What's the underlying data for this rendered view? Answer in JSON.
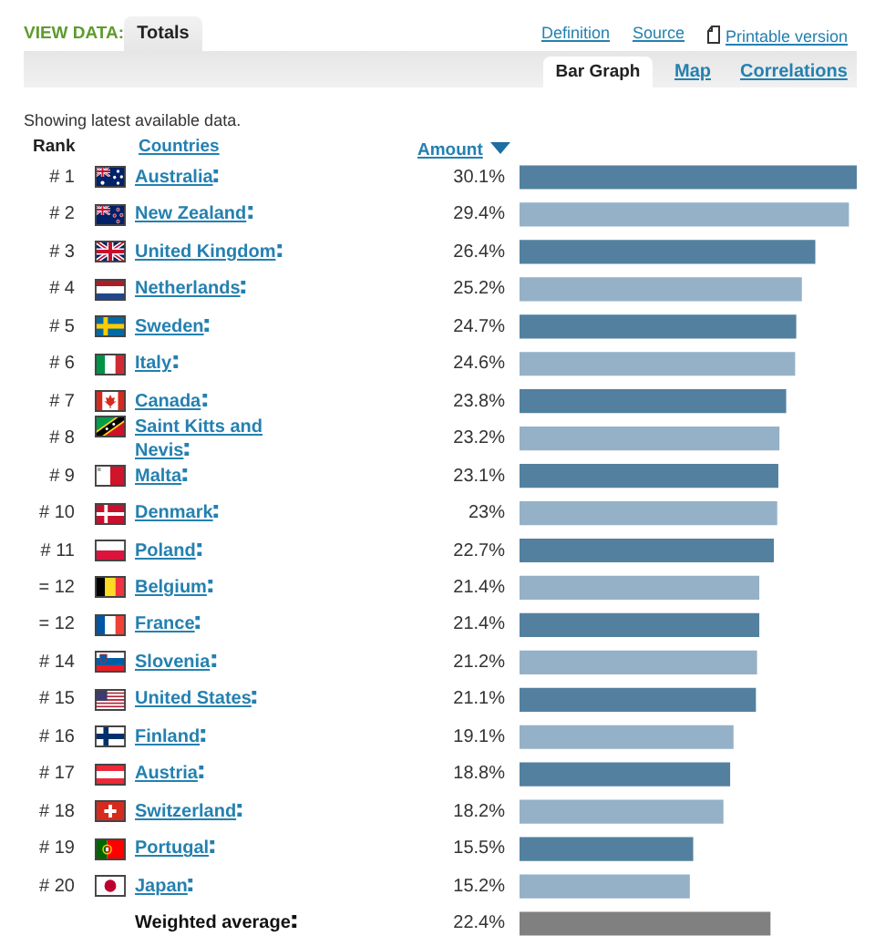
{
  "chart_data": {
    "type": "bar",
    "orientation": "horizontal",
    "subtitle": "Showing latest available data.",
    "xlabel": "Amount",
    "annotations": [
      "VIEW DATA:",
      "Totals",
      "Definition",
      "Source",
      "Printable version",
      "Bar Graph",
      "Map",
      "Correlations",
      "Rank",
      "Countries"
    ],
    "categories": [
      "Australia",
      "New Zealand",
      "United Kingdom",
      "Netherlands",
      "Sweden",
      "Italy",
      "Canada",
      "Saint Kitts and Nevis",
      "Malta",
      "Denmark",
      "Poland",
      "Belgium",
      "France",
      "Slovenia",
      "United States",
      "Finland",
      "Austria",
      "Switzerland",
      "Portugal",
      "Japan",
      "Weighted average"
    ],
    "y2_categories": [
      "# 1",
      "# 2",
      "# 3",
      "# 4",
      "# 5",
      "# 6",
      "# 7",
      "# 8",
      "# 9",
      "# 10",
      "# 11",
      "= 12",
      "= 12",
      "# 14",
      "# 15",
      "# 16",
      "# 17",
      "# 18",
      "# 19",
      "# 20",
      null
    ],
    "values": [
      30.1,
      29.4,
      26.4,
      25.2,
      24.7,
      24.6,
      23.8,
      23.2,
      23.1,
      23,
      22.7,
      21.4,
      21.4,
      21.2,
      21.1,
      19.1,
      18.8,
      18.2,
      15.5,
      15.2,
      22.4
    ],
    "value_labels": [
      "30.1%",
      "29.4%",
      "26.4%",
      "25.2%",
      "24.7%",
      "24.6%",
      "23.8%",
      "23.2%",
      "23.1%",
      "23%",
      "22.7%",
      "21.4%",
      "21.4%",
      "21.2%",
      "21.1%",
      "19.1%",
      "18.8%",
      "18.2%",
      "15.5%",
      "15.2%",
      "22.4%"
    ],
    "colors": [
      "#53809f",
      "#94b1c7",
      "#53809f",
      "#94b1c7",
      "#53809f",
      "#94b1c7",
      "#53809f",
      "#94b1c7",
      "#53809f",
      "#94b1c7",
      "#53809f",
      "#94b1c7",
      "#53809f",
      "#94b1c7",
      "#53809f",
      "#94b1c7",
      "#53809f",
      "#94b1c7",
      "#53809f",
      "#94b1c7",
      "#808080"
    ],
    "tick_labels": "y"
  }
}
